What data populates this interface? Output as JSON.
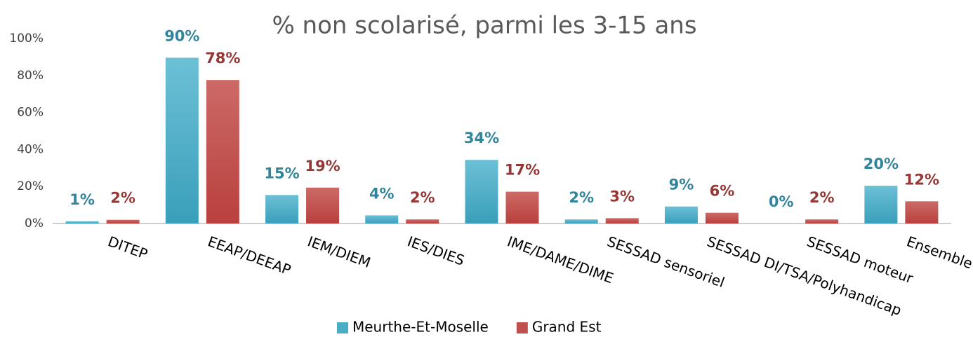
{
  "chart_data": {
    "type": "bar",
    "title": "% non scolarisé, parmi les 3-15 ans",
    "categories": [
      "DITEP",
      "EEAP/DEEAP",
      "IEM/DIEM",
      "IES/DIES",
      "IME/DAME/DIME",
      "SESSAD sensoriel",
      "SESSAD DI/TSA/Polyhandicap",
      "SESSAD moteur",
      "Ensemble"
    ],
    "series": [
      {
        "name": "Meurthe-Et-Moselle",
        "color": "#4bacc6",
        "label_color": "#31849b",
        "values": [
          1.2,
          89.6,
          15.4,
          4.4,
          34.4,
          2.2,
          9.2,
          0,
          20.4
        ],
        "value_labels": [
          "1%",
          "90%",
          "15%",
          "4%",
          "34%",
          "2%",
          "9%",
          "0%",
          "20%"
        ]
      },
      {
        "name": "Grand Est",
        "color": "#c0504d",
        "label_color": "#953735",
        "values": [
          2,
          77.6,
          19.4,
          2.2,
          17.2,
          2.9,
          5.8,
          2.2,
          12
        ],
        "value_labels": [
          "2%",
          "78%",
          "19%",
          "2%",
          "17%",
          "3%",
          "6%",
          "2%",
          "12%"
        ]
      }
    ],
    "ylim": [
      0,
      100
    ],
    "yticks": [
      {
        "value": 0,
        "label": "0%"
      },
      {
        "value": 20,
        "label": "20%"
      },
      {
        "value": 40,
        "label": "40%"
      },
      {
        "value": 60,
        "label": "60%"
      },
      {
        "value": 80,
        "label": "80%"
      },
      {
        "value": 100,
        "label": "100%"
      }
    ],
    "grid": false,
    "legend": "bottom"
  }
}
